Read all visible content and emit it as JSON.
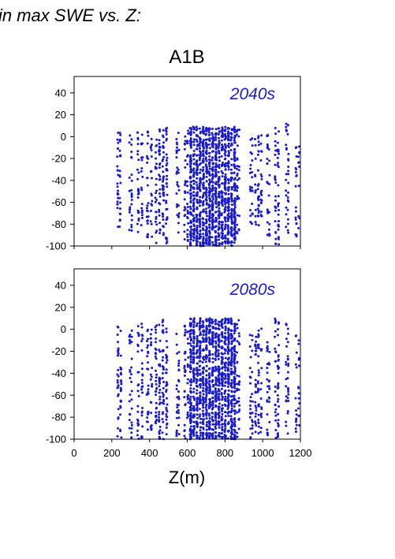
{
  "heading": "in max SWE vs. Z:",
  "colors": {
    "points": "#1a1acc",
    "axes": "#000000"
  },
  "chart_data": {
    "type": "scatter",
    "title": "A1B",
    "xlabel": "Z(m)",
    "ylabel": "",
    "xlim": [
      0,
      1200
    ],
    "ylim": [
      -100,
      55
    ],
    "x_ticks": [
      0,
      200,
      400,
      600,
      800,
      1000,
      1200
    ],
    "y_ticks": [
      -100,
      -80,
      -60,
      -40,
      -20,
      0,
      20,
      40
    ],
    "grid": false,
    "panels": [
      {
        "label": "2040s",
        "series": [
          {
            "color": "#1a1acc",
            "clusters": [
              {
                "x": [
                  225,
                  250
                ],
                "ymin": -90,
                "ymax": 5,
                "density": 3
              },
              {
                "x": [
                  290,
                  310
                ],
                "ymin": -88,
                "ymax": 4,
                "density": 2
              },
              {
                "x": [
                  330,
                  370
                ],
                "ymin": -90,
                "ymax": 6,
                "density": 3
              },
              {
                "x": [
                  380,
                  420
                ],
                "ymin": -92,
                "ymax": 5,
                "density": 3
              },
              {
                "x": [
                  425,
                  500
                ],
                "ymin": -98,
                "ymax": 8,
                "density": 4
              },
              {
                "x": [
                  540,
                  560
                ],
                "ymin": -90,
                "ymax": 5,
                "density": 2
              },
              {
                "x": [
                  580,
                  610
                ],
                "ymin": -98,
                "ymax": 6,
                "density": 3
              },
              {
                "x": [
                  610,
                  860
                ],
                "ymin": -100,
                "ymax": 9,
                "density": 10
              },
              {
                "x": [
                  860,
                  880
                ],
                "ymin": -90,
                "ymax": 12,
                "density": 2
              },
              {
                "x": [
                  930,
                  950
                ],
                "ymin": -82,
                "ymax": -1,
                "density": 2
              },
              {
                "x": [
                  955,
                  1000
                ],
                "ymin": -82,
                "ymax": 3,
                "density": 3
              },
              {
                "x": [
                  1020,
                  1040
                ],
                "ymin": -92,
                "ymax": 2,
                "density": 2
              },
              {
                "x": [
                  1060,
                  1090
                ],
                "ymin": -100,
                "ymax": 8,
                "density": 3
              },
              {
                "x": [
                  1120,
                  1140
                ],
                "ymin": -90,
                "ymax": 14,
                "density": 2
              },
              {
                "x": [
                  1170,
                  1200
                ],
                "ymin": -92,
                "ymax": 2,
                "density": 2
              }
            ]
          }
        ]
      },
      {
        "label": "2080s",
        "series": [
          {
            "color": "#1a1acc",
            "clusters": [
              {
                "x": [
                  225,
                  255
                ],
                "ymin": -100,
                "ymax": 4,
                "density": 3
              },
              {
                "x": [
                  290,
                  310
                ],
                "ymin": -100,
                "ymax": 2,
                "density": 2
              },
              {
                "x": [
                  330,
                  370
                ],
                "ymin": -100,
                "ymax": 5,
                "density": 3
              },
              {
                "x": [
                  380,
                  420
                ],
                "ymin": -100,
                "ymax": 7,
                "density": 3
              },
              {
                "x": [
                  425,
                  500
                ],
                "ymin": -100,
                "ymax": 9,
                "density": 4
              },
              {
                "x": [
                  540,
                  560
                ],
                "ymin": -100,
                "ymax": 5,
                "density": 2
              },
              {
                "x": [
                  580,
                  610
                ],
                "ymin": -100,
                "ymax": 6,
                "density": 3
              },
              {
                "x": [
                  610,
                  860
                ],
                "ymin": -100,
                "ymax": 10,
                "density": 10
              },
              {
                "x": [
                  860,
                  880
                ],
                "ymin": -100,
                "ymax": 10,
                "density": 2
              },
              {
                "x": [
                  930,
                  950
                ],
                "ymin": -100,
                "ymax": -2,
                "density": 2
              },
              {
                "x": [
                  955,
                  1000
                ],
                "ymin": -100,
                "ymax": 2,
                "density": 3
              },
              {
                "x": [
                  1020,
                  1040
                ],
                "ymin": -100,
                "ymax": 3,
                "density": 2
              },
              {
                "x": [
                  1060,
                  1090
                ],
                "ymin": -100,
                "ymax": 14,
                "density": 3
              },
              {
                "x": [
                  1120,
                  1140
                ],
                "ymin": -100,
                "ymax": 5,
                "density": 2
              },
              {
                "x": [
                  1170,
                  1200
                ],
                "ymin": -100,
                "ymax": -5,
                "density": 2
              }
            ]
          }
        ]
      }
    ]
  }
}
